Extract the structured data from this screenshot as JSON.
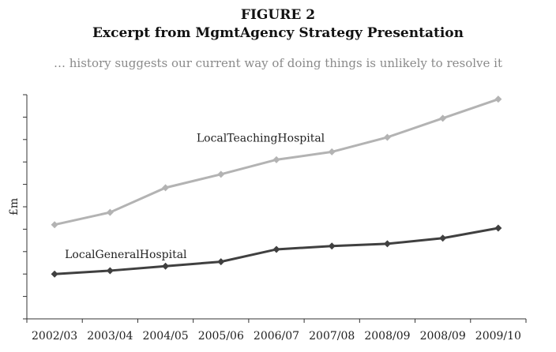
{
  "figure": {
    "number": "FIGURE 2",
    "title": "Excerpt from MgmtAgency Strategy Presentation",
    "subtitle": "… history suggests our current way of doing things is unlikely to resolve it"
  },
  "chart_data": {
    "type": "line",
    "categories": [
      "2002/03",
      "2003/04",
      "2004/05",
      "2005/06",
      "2006/07",
      "2007/08",
      "2008/09",
      "2008/09",
      "2009/10"
    ],
    "ylabel": "£m",
    "xlabel": "",
    "ylim": [
      0,
      10
    ],
    "grid": false,
    "y_tick_labels_shown": false,
    "series": [
      {
        "name": "LocalTeachingHospital",
        "color": "#b3b3b3",
        "values": [
          4.2,
          4.75,
          5.85,
          6.45,
          7.1,
          7.45,
          8.1,
          8.95,
          9.8
        ]
      },
      {
        "name": "LocalGeneralHospital",
        "color": "#404040",
        "values": [
          2.0,
          2.15,
          2.35,
          2.55,
          3.1,
          3.25,
          3.35,
          3.6,
          4.05
        ]
      }
    ]
  }
}
